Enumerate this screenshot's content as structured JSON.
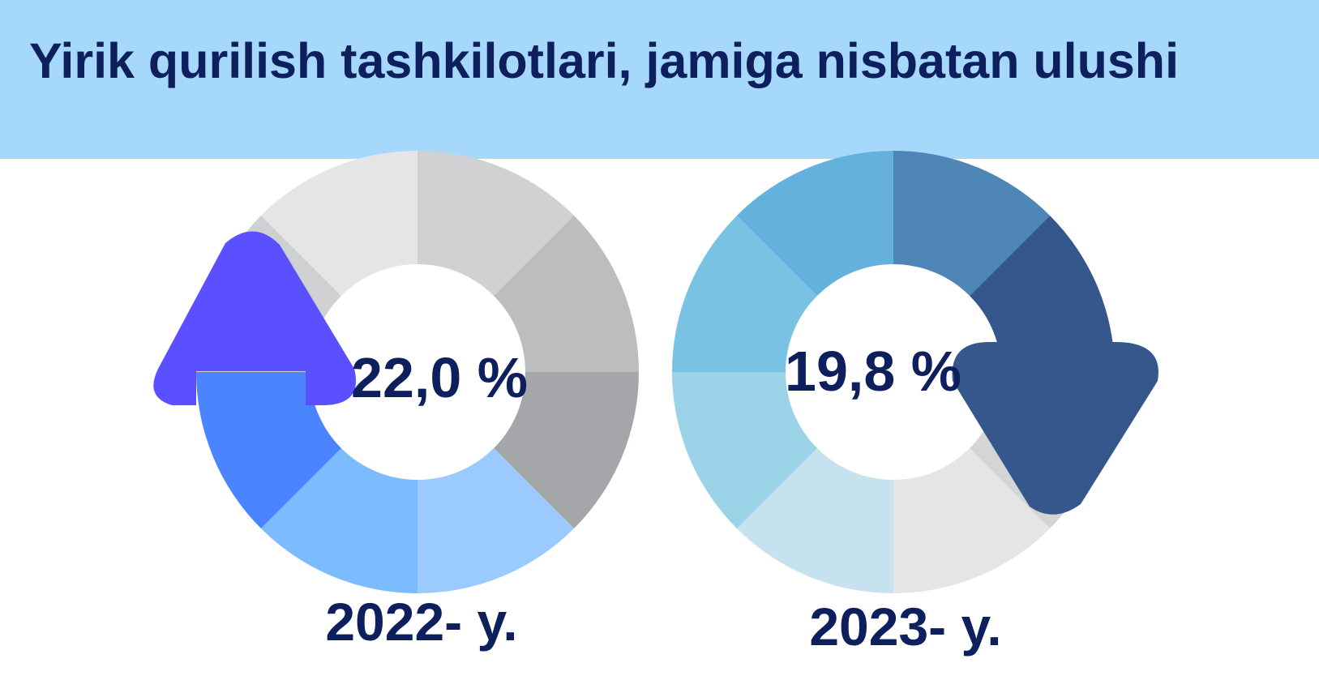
{
  "title": "Yirik qurilish tashkilotlari, jamiga nisbatan ulushi",
  "colors": {
    "banner": "#a6d8fb",
    "title_text": "#0d1f5c",
    "up_arrow": "#5b50ff",
    "down_arrow": "#36578c"
  },
  "chart_data": [
    {
      "type": "donut",
      "label": "2022- y.",
      "value_label": "22,0 %",
      "value": 22.0,
      "arrow": "up",
      "segment_colors": [
        "#d0d1d3",
        "#bcbdbf",
        "#a5a6a9",
        "#9bcaff",
        "#7dbbff",
        "#4a84ff",
        "#cfd0d2",
        "#e5e5e7"
      ]
    },
    {
      "type": "donut",
      "label": "2023- y.",
      "value_label": "19,8 %",
      "value": 19.8,
      "arrow": "down",
      "segment_colors": [
        "#4f86b8",
        "#36578c",
        "#d4d5d7",
        "#e5e5e7",
        "#c5e2ee",
        "#9ad3e8",
        "#7ac2e3",
        "#64b1de"
      ]
    }
  ]
}
